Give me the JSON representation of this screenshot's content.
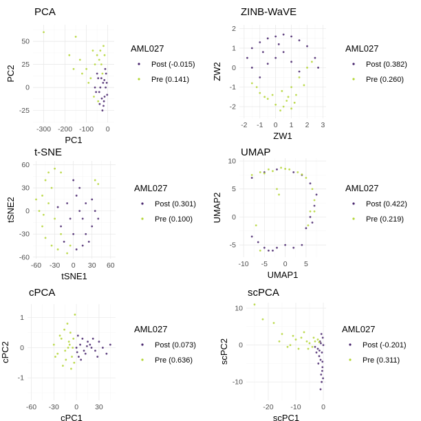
{
  "colors": {
    "post": "#45226b",
    "pre": "#b3d534"
  },
  "chart_data": [
    {
      "type": "scatter",
      "title": "PCA",
      "xlabel": "PC1",
      "ylabel": "PC2",
      "xlim": [
        -350,
        30
      ],
      "ylim": [
        -38,
        68
      ],
      "xticks": [
        -300,
        -200,
        -100,
        0
      ],
      "yticks": [
        -25,
        0,
        25,
        50
      ],
      "legend_title": "AML027",
      "series": [
        {
          "name": "Post (-0.015)",
          "color": "#45226b",
          "points": [
            [
              -10,
              0
            ],
            [
              -15,
              -10
            ],
            [
              -20,
              -20
            ],
            [
              -5,
              5
            ],
            [
              -30,
              10
            ],
            [
              -40,
              -5
            ],
            [
              -8,
              15
            ],
            [
              -25,
              -25
            ],
            [
              -12,
              20
            ],
            [
              -18,
              -15
            ],
            [
              -35,
              0
            ],
            [
              -45,
              10
            ],
            [
              -55,
              -5
            ],
            [
              -3,
              -8
            ],
            [
              -22,
              5
            ],
            [
              -28,
              -12
            ],
            [
              -16,
              8
            ],
            [
              -38,
              -18
            ],
            [
              -50,
              15
            ],
            [
              -60,
              0
            ]
          ]
        },
        {
          "name": "Pre (0.141)",
          "color": "#b3d534",
          "points": [
            [
              -20,
              45
            ],
            [
              -40,
              30
            ],
            [
              -60,
              25
            ],
            [
              -80,
              10
            ],
            [
              -100,
              20
            ],
            [
              -120,
              15
            ],
            [
              -150,
              55
            ],
            [
              -180,
              35
            ],
            [
              -300,
              60
            ],
            [
              -30,
              25
            ],
            [
              -50,
              35
            ],
            [
              -70,
              40
            ],
            [
              -25,
              15
            ],
            [
              -90,
              5
            ],
            [
              -130,
              30
            ],
            [
              -160,
              20
            ],
            [
              -35,
              40
            ],
            [
              -45,
              -15
            ],
            [
              -65,
              -10
            ],
            [
              -15,
              35
            ]
          ]
        }
      ]
    },
    {
      "type": "scatter",
      "title": "ZINB-WaVE",
      "xlabel": "ZW1",
      "ylabel": "ZW2",
      "xlim": [
        -2.3,
        3.2
      ],
      "ylim": [
        -2.6,
        2.2
      ],
      "xticks": [
        -2,
        -1,
        0,
        1,
        2,
        3
      ],
      "yticks": [
        -2,
        -1,
        0,
        1,
        2
      ],
      "legend_title": "AML027",
      "series": [
        {
          "name": "Post (0.382)",
          "color": "#45226b",
          "points": [
            [
              -1.5,
              1
            ],
            [
              -1,
              1.3
            ],
            [
              -0.5,
              1.5
            ],
            [
              0,
              1.6
            ],
            [
              0.5,
              1.7
            ],
            [
              1,
              1.6
            ],
            [
              1.5,
              1.4
            ],
            [
              2,
              1.1
            ],
            [
              2.5,
              0.5
            ],
            [
              2.7,
              0
            ],
            [
              -1.8,
              0.5
            ],
            [
              -1.5,
              0
            ],
            [
              -1,
              -0.5
            ],
            [
              -0.5,
              0.2
            ],
            [
              0,
              0.5
            ],
            [
              0.5,
              0.8
            ],
            [
              1,
              0.3
            ],
            [
              1.5,
              -0.2
            ],
            [
              -0.8,
              0.8
            ],
            [
              0.2,
              1.2
            ]
          ]
        },
        {
          "name": "Pre (0.260)",
          "color": "#b3d534",
          "points": [
            [
              -1.5,
              -0.8
            ],
            [
              -1,
              -1.3
            ],
            [
              -0.5,
              -1.6
            ],
            [
              0,
              -1.9
            ],
            [
              0.5,
              -2
            ],
            [
              1,
              -2.1
            ],
            [
              1.2,
              -1.8
            ],
            [
              0.8,
              -1.5
            ],
            [
              1.5,
              -0.5
            ],
            [
              2,
              0
            ],
            [
              2.3,
              0.3
            ],
            [
              1.8,
              -0.9
            ],
            [
              0.3,
              -2.2
            ],
            [
              -0.2,
              -1.4
            ],
            [
              -1.2,
              -1
            ],
            [
              0.7,
              -1.7
            ],
            [
              1,
              -1
            ],
            [
              0.4,
              -1.2
            ],
            [
              -0.7,
              -1.5
            ],
            [
              1.3,
              -1.4
            ]
          ]
        }
      ]
    },
    {
      "type": "scatter",
      "title": "t-SNE",
      "xlabel": "tSNE1",
      "ylabel": "tSNE2",
      "xlim": [
        -65,
        68
      ],
      "ylim": [
        -62,
        65
      ],
      "xticks": [
        -60,
        -30,
        0,
        30,
        60
      ],
      "yticks": [
        -60,
        -30,
        0,
        30,
        60
      ],
      "legend_title": "AML027",
      "series": [
        {
          "name": "Post (0.301)",
          "color": "#45226b",
          "points": [
            [
              0,
              40
            ],
            [
              5,
              20
            ],
            [
              10,
              0
            ],
            [
              15,
              -10
            ],
            [
              20,
              -30
            ],
            [
              25,
              -40
            ],
            [
              30,
              -20
            ],
            [
              35,
              0
            ],
            [
              -10,
              10
            ],
            [
              -5,
              -10
            ],
            [
              -20,
              -20
            ],
            [
              -25,
              5
            ],
            [
              0,
              -30
            ],
            [
              10,
              30
            ],
            [
              20,
              10
            ],
            [
              30,
              15
            ],
            [
              -15,
              -40
            ],
            [
              5,
              -50
            ],
            [
              15,
              -45
            ],
            [
              40,
              -10
            ]
          ]
        },
        {
          "name": "Pre (0.100)",
          "color": "#b3d534",
          "points": [
            [
              -50,
              20
            ],
            [
              -45,
              40
            ],
            [
              -40,
              50
            ],
            [
              -30,
              55
            ],
            [
              -20,
              50
            ],
            [
              -55,
              0
            ],
            [
              -50,
              -20
            ],
            [
              -45,
              -35
            ],
            [
              -35,
              -45
            ],
            [
              -25,
              -50
            ],
            [
              -10,
              -55
            ],
            [
              35,
              40
            ],
            [
              40,
              35
            ],
            [
              -40,
              10
            ],
            [
              -30,
              -10
            ],
            [
              -60,
              15
            ],
            [
              -20,
              -30
            ],
            [
              -35,
              30
            ],
            [
              -48,
              -5
            ],
            [
              -5,
              -45
            ]
          ]
        }
      ]
    },
    {
      "type": "scatter",
      "title": "UMAP",
      "xlabel": "UMAP1",
      "ylabel": "UMAP2",
      "xlim": [
        -11,
        9.8
      ],
      "ylim": [
        -7.2,
        10.5
      ],
      "xticks": [
        -10,
        -5,
        0,
        5
      ],
      "yticks": [
        -5,
        0,
        5,
        10
      ],
      "legend_title": "AML027",
      "series": [
        {
          "name": "Post (0.422)",
          "color": "#45226b",
          "points": [
            [
              -8,
              -3.5
            ],
            [
              -6.5,
              -4.5
            ],
            [
              -5,
              -5.5
            ],
            [
              -4,
              -6
            ],
            [
              -2,
              -5.5
            ],
            [
              0,
              -5
            ],
            [
              2,
              -5.5
            ],
            [
              4,
              -5
            ],
            [
              5,
              -2
            ],
            [
              6,
              0
            ],
            [
              7,
              2
            ],
            [
              7.5,
              4
            ],
            [
              6,
              6
            ],
            [
              4,
              7.5
            ],
            [
              2,
              8
            ],
            [
              -2,
              8.5
            ],
            [
              -5,
              8
            ],
            [
              -8,
              7
            ],
            [
              6.5,
              -1
            ],
            [
              -3,
              -6
            ]
          ]
        },
        {
          "name": "Pre (0.219)",
          "color": "#b3d534",
          "points": [
            [
              -8,
              7.5
            ],
            [
              -6,
              8
            ],
            [
              -4,
              8.5
            ],
            [
              -1,
              8.8
            ],
            [
              1,
              8.5
            ],
            [
              3,
              8
            ],
            [
              5,
              7
            ],
            [
              6.5,
              5
            ],
            [
              7,
              3
            ],
            [
              -7,
              -1.5
            ],
            [
              -2,
              5
            ],
            [
              -1.5,
              4
            ],
            [
              6,
              1
            ],
            [
              5.5,
              -1.5
            ],
            [
              -6,
              -6
            ],
            [
              -3,
              8.2
            ],
            [
              0,
              8.6
            ],
            [
              4,
              7.6
            ],
            [
              -5,
              7.8
            ],
            [
              7,
              1
            ]
          ]
        }
      ]
    },
    {
      "type": "scatter",
      "title": "cPCA",
      "xlabel": "cPC1",
      "ylabel": "cPC2",
      "xlim": [
        -65,
        52
      ],
      "ylim": [
        -1.75,
        1.45
      ],
      "xticks": [
        -60,
        -30,
        0,
        30
      ],
      "yticks": [
        -1,
        0,
        1
      ],
      "legend_title": "AML027",
      "series": [
        {
          "name": "Post (0.073)",
          "color": "#45226b",
          "points": [
            [
              0,
              0
            ],
            [
              5,
              0.1
            ],
            [
              10,
              -0.1
            ],
            [
              15,
              0.2
            ],
            [
              20,
              0
            ],
            [
              3,
              -0.3
            ],
            [
              8,
              0.3
            ],
            [
              12,
              -0.2
            ],
            [
              18,
              0.1
            ],
            [
              25,
              -0.1
            ],
            [
              30,
              0.2
            ],
            [
              35,
              0
            ],
            [
              40,
              -0.2
            ],
            [
              2,
              0.4
            ],
            [
              6,
              -0.4
            ],
            [
              14,
              0.05
            ],
            [
              22,
              0.3
            ],
            [
              28,
              -0.3
            ],
            [
              45,
              0.1
            ],
            [
              1,
              -0.15
            ]
          ]
        },
        {
          "name": "Pre (0.636)",
          "color": "#b3d534",
          "points": [
            [
              -5,
              0
            ],
            [
              -10,
              0.2
            ],
            [
              -15,
              -0.1
            ],
            [
              -20,
              0.3
            ],
            [
              -25,
              -0.2
            ],
            [
              -8,
              0.5
            ],
            [
              -3,
              -0.5
            ],
            [
              -12,
              0.8
            ],
            [
              -18,
              -0.6
            ],
            [
              -2,
              1.1
            ],
            [
              -30,
              0.1
            ],
            [
              -6,
              -0.3
            ],
            [
              -22,
              0.4
            ],
            [
              -14,
              -0.4
            ],
            [
              -9,
              0.1
            ],
            [
              -4,
              0.3
            ],
            [
              -16,
              0.6
            ],
            [
              -7,
              -0.7
            ],
            [
              -28,
              -0.3
            ],
            [
              -11,
              0
            ]
          ]
        }
      ]
    },
    {
      "type": "scatter",
      "title": "scPCA",
      "xlabel": "scPC1",
      "ylabel": "scPC2",
      "xlim": [
        -28,
        1
      ],
      "ylim": [
        -15,
        11.5
      ],
      "xticks": [
        -20,
        -10,
        0
      ],
      "yticks": [
        -10,
        0,
        10
      ],
      "legend_title": "AML027",
      "series": [
        {
          "name": "Post (-0.201)",
          "color": "#45226b",
          "points": [
            [
              0,
              0
            ],
            [
              -0.5,
              -2
            ],
            [
              -1,
              -4
            ],
            [
              -0.3,
              -6
            ],
            [
              -0.8,
              -8
            ],
            [
              -1.5,
              -3
            ],
            [
              -2,
              -1
            ],
            [
              -0.2,
              2
            ],
            [
              -1.2,
              1
            ],
            [
              -0.6,
              -10
            ],
            [
              -1,
              -12
            ],
            [
              -0.4,
              -7
            ],
            [
              -2.5,
              -2
            ],
            [
              -1.8,
              -5
            ],
            [
              -0.1,
              -9
            ],
            [
              -0.9,
              0.5
            ],
            [
              -1.4,
              -1.5
            ],
            [
              -0.7,
              3
            ],
            [
              -3,
              -0.5
            ],
            [
              -0.3,
              -4.5
            ]
          ]
        },
        {
          "name": "Pre (0.311)",
          "color": "#b3d534",
          "points": [
            [
              -3,
              1
            ],
            [
              -5,
              0.5
            ],
            [
              -8,
              2
            ],
            [
              -10,
              1.5
            ],
            [
              -12,
              0
            ],
            [
              -15,
              3
            ],
            [
              -18,
              6
            ],
            [
              -22,
              7
            ],
            [
              -25,
              11
            ],
            [
              -4,
              -0.5
            ],
            [
              -6,
              1
            ],
            [
              -9,
              -1
            ],
            [
              -2,
              1.5
            ],
            [
              -7,
              3.5
            ],
            [
              -11,
              2.5
            ],
            [
              -13,
              -0.5
            ],
            [
              -1.5,
              0.8
            ],
            [
              -3.5,
              2
            ],
            [
              -5.5,
              -1
            ],
            [
              -16,
              1
            ]
          ]
        }
      ]
    }
  ]
}
